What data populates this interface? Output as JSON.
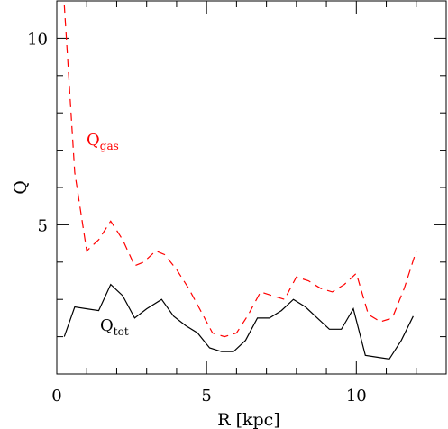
{
  "chart_data": {
    "type": "line",
    "xlabel": "R [kpc]",
    "ylabel": "Q",
    "xlim": [
      0,
      13
    ],
    "ylim": [
      1,
      11
    ],
    "x_ticks_major": [
      0,
      5,
      10
    ],
    "x_ticks_minor": [
      1,
      2,
      3,
      4,
      6,
      7,
      8,
      9,
      11,
      12
    ],
    "y_ticks_major": [
      5,
      10
    ],
    "y_ticks_minor": [
      2,
      3,
      4,
      6,
      7,
      8,
      9
    ],
    "grid": false,
    "legend": "none",
    "series": [
      {
        "key": "gas",
        "color": "#ff0000",
        "style": "dashed",
        "x": [
          0.25,
          0.6,
          1.0,
          1.4,
          1.8,
          2.2,
          2.6,
          2.9,
          3.3,
          3.6,
          4.0,
          4.4,
          4.8,
          5.2,
          5.6,
          6.0,
          6.4,
          6.8,
          7.2,
          7.6,
          8.0,
          8.4,
          8.8,
          9.2,
          9.6,
          10.0,
          10.4,
          10.8,
          11.2,
          11.6,
          12.0
        ],
        "y": [
          10.9,
          6.4,
          4.3,
          4.6,
          5.1,
          4.6,
          3.9,
          4.0,
          4.3,
          4.2,
          3.8,
          3.3,
          2.7,
          2.1,
          2.0,
          2.1,
          2.6,
          3.2,
          3.1,
          3.0,
          3.6,
          3.5,
          3.3,
          3.2,
          3.4,
          3.7,
          2.6,
          2.4,
          2.5,
          3.3,
          4.3
        ]
      },
      {
        "key": "tot",
        "color": "#000000",
        "style": "solid",
        "x": [
          0.25,
          0.6,
          1.0,
          1.4,
          1.8,
          2.2,
          2.6,
          3.0,
          3.5,
          3.9,
          4.3,
          4.7,
          5.1,
          5.5,
          5.9,
          6.3,
          6.7,
          7.1,
          7.5,
          7.9,
          8.3,
          8.7,
          9.1,
          9.5,
          9.9,
          10.3,
          10.7,
          11.1,
          11.5,
          11.9
        ],
        "y": [
          2.0,
          2.8,
          2.75,
          2.7,
          3.4,
          3.1,
          2.5,
          2.75,
          3.0,
          2.55,
          2.3,
          2.1,
          1.7,
          1.6,
          1.6,
          1.9,
          2.5,
          2.5,
          2.7,
          3.0,
          2.8,
          2.5,
          2.2,
          2.2,
          2.75,
          1.5,
          1.45,
          1.4,
          1.9,
          2.55
        ]
      }
    ],
    "annotations": [
      {
        "main": "Q",
        "sub": "gas",
        "color": "#ff0000"
      },
      {
        "main": "Q",
        "sub": "tot",
        "color": "#000000"
      }
    ]
  }
}
